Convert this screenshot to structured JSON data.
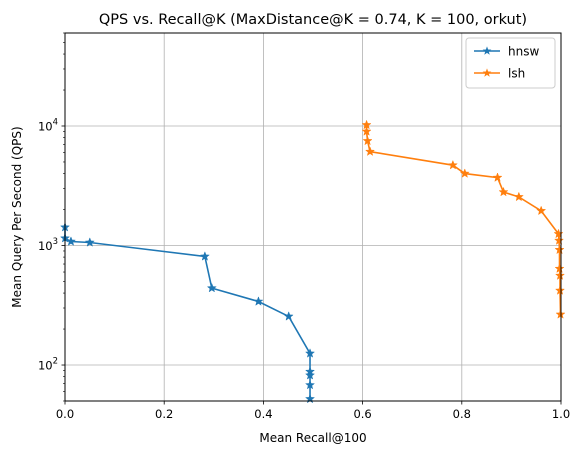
{
  "chart_data": {
    "type": "line",
    "title": "QPS vs. Recall@K (MaxDistance@K = 0.74, K = 100, orkut)",
    "xlabel": "Mean Recall@100",
    "ylabel": "Mean Query Per Second (QPS)",
    "xlim": [
      0,
      1
    ],
    "ylim": [
      50,
      60000
    ],
    "yscale": "log",
    "grid": true,
    "legend_position": "top-right",
    "xticks": [
      "0.0",
      "0.2",
      "0.4",
      "0.6",
      "0.8",
      "1.0"
    ],
    "yticks": [
      {
        "value": 100,
        "base": "10",
        "exp": "2"
      },
      {
        "value": 1000,
        "base": "10",
        "exp": "3"
      },
      {
        "value": 10000,
        "base": "10",
        "exp": "4"
      }
    ],
    "series": [
      {
        "name": "hnsw",
        "color": "#1f77b4",
        "marker": "star",
        "x": [
          0.0,
          0.0,
          0.012,
          0.05,
          0.282,
          0.296,
          0.39,
          0.451,
          0.494,
          0.494,
          0.494,
          0.494,
          0.494
        ],
        "y": [
          1420,
          1150,
          1080,
          1060,
          810,
          440,
          340,
          255,
          125,
          88,
          82,
          68,
          52
        ]
      },
      {
        "name": "lsh",
        "color": "#ff7f0e",
        "marker": "star",
        "x": [
          0.608,
          0.608,
          0.61,
          0.615,
          0.782,
          0.806,
          0.872,
          0.884,
          0.915,
          0.96,
          0.995,
          0.996,
          0.997,
          0.997,
          0.998,
          0.998,
          0.999
        ],
        "y": [
          10200,
          9000,
          7500,
          6100,
          4700,
          4000,
          3700,
          2800,
          2550,
          1950,
          1250,
          1100,
          920,
          640,
          560,
          420,
          265
        ]
      }
    ]
  }
}
